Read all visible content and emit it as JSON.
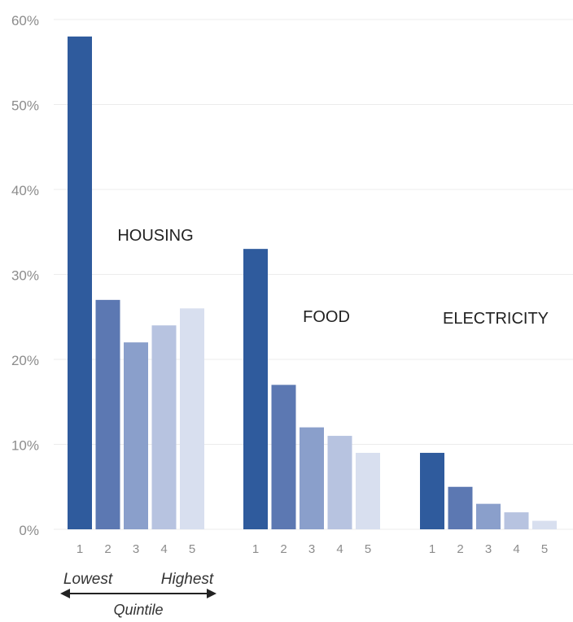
{
  "chart_data": {
    "type": "bar",
    "ylim": [
      0,
      60
    ],
    "yticks": [
      0,
      10,
      20,
      30,
      40,
      50,
      60
    ],
    "ytick_labels": [
      "0%",
      "10%",
      "20%",
      "30%",
      "40%",
      "50%",
      "60%"
    ],
    "grid": true,
    "categories": [
      "1",
      "2",
      "3",
      "4",
      "5"
    ],
    "groups": [
      {
        "name": "HOUSING",
        "values": [
          58,
          27,
          22,
          24,
          26
        ]
      },
      {
        "name": "FOOD",
        "values": [
          33,
          17,
          12,
          11,
          9
        ]
      },
      {
        "name": "ELECTRICITY",
        "values": [
          9,
          5,
          3,
          2,
          1
        ]
      }
    ],
    "colors": [
      "#2f5b9d",
      "#5c78b2",
      "#8a9fcb",
      "#b7c3e0",
      "#d8dfef"
    ],
    "axis_note": {
      "low": "Lowest",
      "high": "Highest",
      "label": "Quintile"
    }
  }
}
